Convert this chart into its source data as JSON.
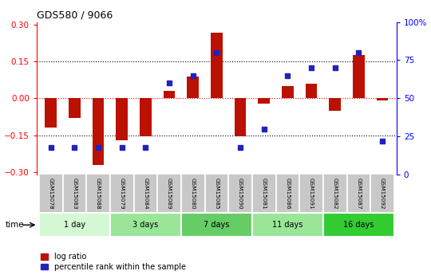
{
  "title": "GDS580 / 9066",
  "samples": [
    "GSM15078",
    "GSM15083",
    "GSM15088",
    "GSM15079",
    "GSM15084",
    "GSM15089",
    "GSM15080",
    "GSM15085",
    "GSM15090",
    "GSM15081",
    "GSM15086",
    "GSM15091",
    "GSM15082",
    "GSM15087",
    "GSM15092"
  ],
  "log_ratio": [
    -0.12,
    -0.08,
    -0.27,
    -0.17,
    -0.155,
    0.03,
    0.09,
    0.265,
    -0.155,
    -0.02,
    0.05,
    0.06,
    -0.05,
    0.175,
    -0.01
  ],
  "percentile": [
    18,
    18,
    18,
    18,
    18,
    60,
    65,
    80,
    18,
    30,
    65,
    70,
    70,
    80,
    22
  ],
  "groups": [
    {
      "label": "1 day",
      "indices": [
        0,
        1,
        2
      ],
      "color": "#d4f7d4"
    },
    {
      "label": "3 days",
      "indices": [
        3,
        4,
        5
      ],
      "color": "#99e699"
    },
    {
      "label": "7 days",
      "indices": [
        6,
        7,
        8
      ],
      "color": "#66cc66"
    },
    {
      "label": "11 days",
      "indices": [
        9,
        10,
        11
      ],
      "color": "#99e699"
    },
    {
      "label": "16 days",
      "indices": [
        12,
        13,
        14
      ],
      "color": "#33cc33"
    }
  ],
  "bar_color": "#bb1100",
  "dot_color": "#2222bb",
  "ylim_left": [
    -0.31,
    0.31
  ],
  "ylim_right": [
    0,
    100
  ],
  "yticks_left": [
    -0.3,
    -0.15,
    0,
    0.15,
    0.3
  ],
  "yticks_right": [
    0,
    25,
    50,
    75,
    100
  ],
  "hlines": [
    -0.15,
    0.0,
    0.15
  ],
  "hline_styles": [
    "dotted",
    "dotted",
    "dotted"
  ],
  "hline_colors": [
    "black",
    "red",
    "black"
  ],
  "legend_log": "log ratio",
  "legend_pct": "percentile rank within the sample",
  "bar_width": 0.5,
  "dot_size": 5
}
